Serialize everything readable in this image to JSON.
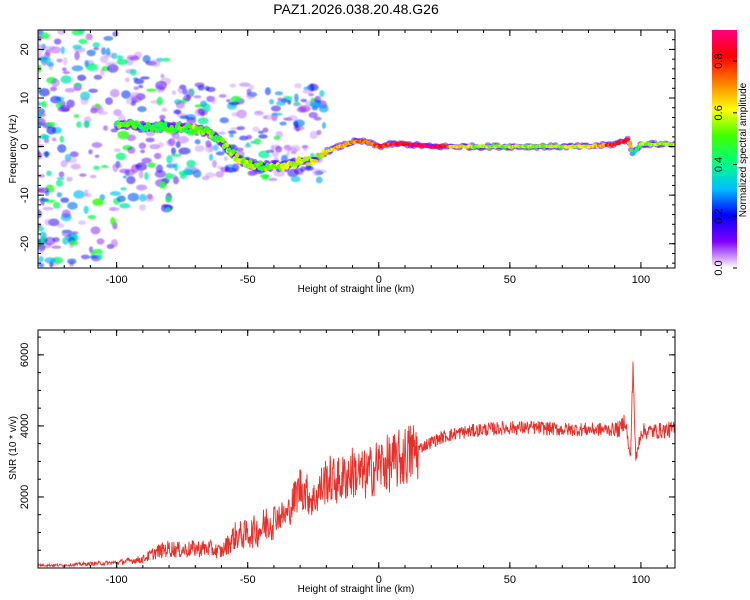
{
  "title": "PAZ1.2026.038.20.48.G26",
  "chart_data": [
    {
      "type": "heatmap",
      "panel": "top",
      "xlabel": "Height of straight line (km)",
      "ylabel": "Frequency (Hz)",
      "xlim": [
        -130,
        113
      ],
      "ylim": [
        -25,
        24
      ],
      "xticks": [
        -100,
        -50,
        0,
        50,
        100
      ],
      "xtick_labels": [
        "-100",
        "-50",
        "0",
        "50",
        "100"
      ],
      "yticks": [
        -20,
        -10,
        0,
        10,
        20
      ],
      "ytick_labels": [
        "-20",
        "-10",
        "0",
        "10",
        "20"
      ],
      "ridge": {
        "x": [
          -100,
          -95,
          -90,
          -85,
          -80,
          -75,
          -70,
          -65,
          -60,
          -55,
          -50,
          -45,
          -40,
          -35,
          -30,
          -25,
          -20,
          -15,
          -10,
          -5,
          0,
          5,
          10,
          20,
          30,
          40,
          50,
          60,
          70,
          80,
          90,
          95,
          97,
          100,
          113
        ],
        "freq": [
          4.5,
          4.5,
          4,
          4,
          4,
          4,
          3.5,
          3,
          1,
          -2,
          -3.5,
          -4,
          -4,
          -4,
          -3,
          -3,
          -1,
          0,
          1,
          1,
          0,
          0.5,
          0.5,
          0,
          0,
          0,
          0,
          0,
          0,
          0,
          0.5,
          1.5,
          -1.5,
          0.5,
          0.5
        ],
        "amplitude": [
          0.5,
          0.5,
          0.45,
          0.45,
          0.45,
          0.5,
          0.55,
          0.5,
          0.5,
          0.55,
          0.55,
          0.5,
          0.55,
          0.55,
          0.6,
          0.6,
          0.6,
          0.65,
          0.7,
          0.75,
          0.75,
          0.8,
          0.85,
          0.95,
          0.6,
          0.55,
          0.55,
          0.55,
          0.55,
          0.6,
          0.8,
          0.85,
          0.35,
          0.55,
          0.55
        ]
      },
      "colorbar": {
        "label": "Normalized spectral amplitude",
        "range": [
          0.0,
          0.92
        ],
        "ticks": [
          0.0,
          0.2,
          0.4,
          0.6,
          0.8
        ],
        "tick_labels": [
          "0.0",
          "0.2",
          "0.4",
          "0.6",
          "0.8"
        ],
        "colormap": [
          "#ffffff",
          "#8000ff",
          "#0000ff",
          "#00c0ff",
          "#00ff80",
          "#40ff00",
          "#ffff00",
          "#ff8000",
          "#ff0000",
          "#ff0080"
        ]
      }
    },
    {
      "type": "line",
      "panel": "bottom",
      "xlabel": "Height of straight line (km)",
      "ylabel": "SNR (10 * v/v)",
      "xlim": [
        -130,
        113
      ],
      "ylim": [
        0,
        6700
      ],
      "xticks": [
        -100,
        -50,
        0,
        50,
        100
      ],
      "xtick_labels": [
        "-100",
        "-50",
        "0",
        "50",
        "100"
      ],
      "yticks": [
        2000,
        4000,
        6000
      ],
      "ytick_labels": [
        "2000",
        "4000",
        "6000"
      ],
      "color": "#e8302a",
      "series": [
        {
          "name": "SNR",
          "x": [
            -130,
            -120,
            -110,
            -100,
            -90,
            -85,
            -80,
            -75,
            -70,
            -65,
            -60,
            -55,
            -50,
            -45,
            -40,
            -35,
            -30,
            -25,
            -20,
            -15,
            -10,
            -5,
            0,
            5,
            10,
            15,
            20,
            25,
            30,
            40,
            50,
            60,
            70,
            80,
            88,
            92,
            94,
            96,
            97,
            98,
            100,
            105,
            113
          ],
          "y": [
            80,
            80,
            120,
            150,
            250,
            450,
            550,
            500,
            550,
            550,
            450,
            900,
            950,
            1100,
            1450,
            1500,
            2300,
            1900,
            2500,
            2450,
            2700,
            2600,
            2900,
            2950,
            3150,
            3350,
            3550,
            3700,
            3800,
            3900,
            3950,
            3950,
            3900,
            3900,
            3900,
            3900,
            4200,
            3000,
            5800,
            3000,
            3850,
            3850,
            3900
          ]
        }
      ]
    }
  ]
}
